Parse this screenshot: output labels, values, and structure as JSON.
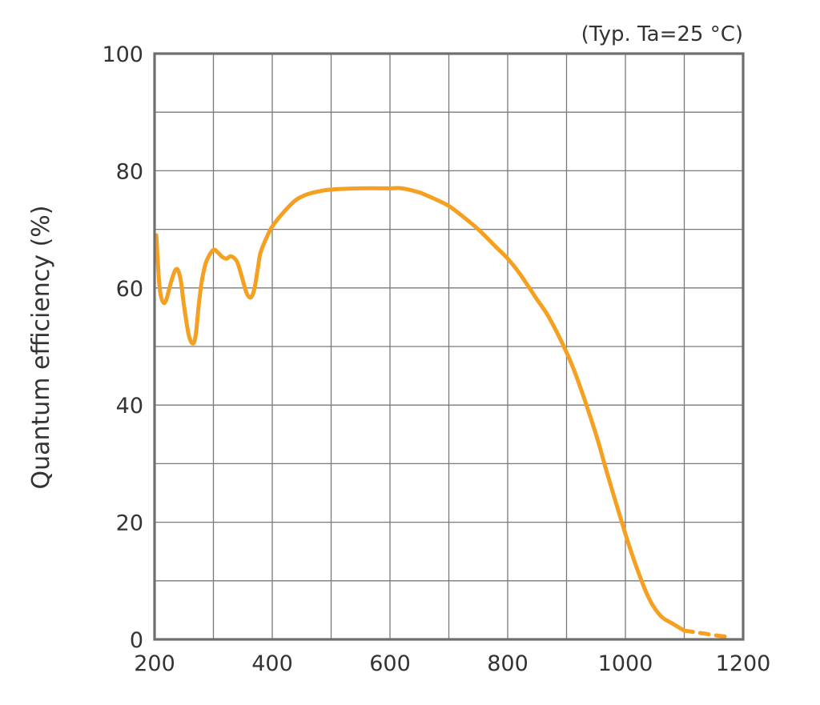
{
  "chart_data": {
    "type": "line",
    "title": "",
    "annotation": "(Typ. Ta=25 °C)",
    "xlabel": "",
    "ylabel": "Quantum efficiency (%)",
    "xlim": [
      200,
      1200
    ],
    "ylim": [
      0,
      100
    ],
    "x_ticks": [
      200,
      400,
      600,
      800,
      1000,
      1200
    ],
    "y_ticks": [
      0,
      20,
      40,
      60,
      80,
      100
    ],
    "x_grid_step": 100,
    "y_grid_step": 10,
    "grid": true,
    "legend": "none",
    "colors": {
      "line": "#f5a021",
      "grid": "#7a7a7a",
      "frame": "#6e6e6e",
      "text": "#333333"
    },
    "series": [
      {
        "style": "solid",
        "x": [
          203,
          207,
          210,
          215,
          220,
          228,
          235,
          240,
          245,
          250,
          258,
          265,
          270,
          275,
          280,
          285,
          290,
          300,
          308,
          315,
          322,
          330,
          340,
          348,
          355,
          360,
          365,
          370,
          375,
          380,
          390,
          400,
          420,
          440,
          460,
          480,
          500,
          550,
          600,
          620,
          650,
          680,
          700,
          720,
          750,
          780,
          800,
          820,
          850,
          870,
          900,
          920,
          950,
          970,
          1000,
          1020,
          1040,
          1060,
          1080,
          1100
        ],
        "y": [
          69,
          62,
          59,
          57.5,
          58,
          61,
          63,
          63,
          61,
          57,
          52,
          50.5,
          52,
          57,
          61,
          63.5,
          65,
          66.5,
          66,
          65.3,
          65,
          65.4,
          64.5,
          62,
          59.5,
          58.5,
          58.5,
          60,
          63,
          66,
          68.5,
          70.5,
          73,
          75,
          76,
          76.5,
          76.8,
          77,
          77,
          77,
          76.3,
          75,
          74,
          72.5,
          70,
          67,
          65,
          62.5,
          58,
          55,
          49,
          44,
          35,
          28,
          18,
          12,
          7,
          4,
          2.7,
          1.5
        ]
      },
      {
        "style": "dashed",
        "x": [
          1100,
          1120,
          1140,
          1160,
          1170
        ],
        "y": [
          1.5,
          1.2,
          0.9,
          0.6,
          0.5
        ]
      }
    ]
  }
}
